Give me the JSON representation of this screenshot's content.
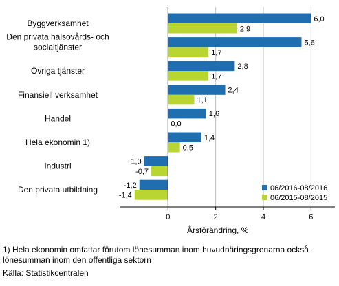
{
  "chart_data": {
    "type": "bar",
    "orientation": "horizontal",
    "categories": [
      "Byggverksamhet",
      [
        "Den privata hälsovårds- och",
        "socialtjänster"
      ],
      "Övriga tjänster",
      "Finansiell verksamhet",
      "Handel",
      "Hela ekonomin 1)",
      "Industri",
      "Den privata utbildning"
    ],
    "series": [
      {
        "name": "06/2016-08/2016",
        "color": "#1f6fb0",
        "values": [
          6.0,
          5.6,
          2.8,
          2.4,
          1.6,
          1.4,
          -1.0,
          -1.2
        ],
        "labels": [
          "6,0",
          "5,6",
          "2,8",
          "2,4",
          "1,6",
          "1,4",
          "-1,0",
          "-1,2"
        ]
      },
      {
        "name": "06/2015-08/2015",
        "color": "#b9d531",
        "values": [
          2.9,
          1.7,
          1.7,
          1.1,
          0.0,
          0.5,
          -0.7,
          -1.4
        ],
        "labels": [
          "2,9",
          "1,7",
          "1,7",
          "1,1",
          "0,0",
          "0,5",
          "-0,7",
          "-1,4"
        ]
      }
    ],
    "xlim": [
      -2,
      7
    ],
    "xticks": [
      0,
      2,
      4,
      6
    ],
    "xlabel": "Årsförändring, %",
    "grid": "vertical",
    "legend_position": "bottom-right"
  },
  "footnotes": {
    "note_line1": "1) Hela ekonomin omfattar förutom lönesumman inom huvudnäringsgrenarna också",
    "note_line2": "lönesumman inom den offentliga sektorn",
    "source": "Källa: Statistikcentralen"
  }
}
